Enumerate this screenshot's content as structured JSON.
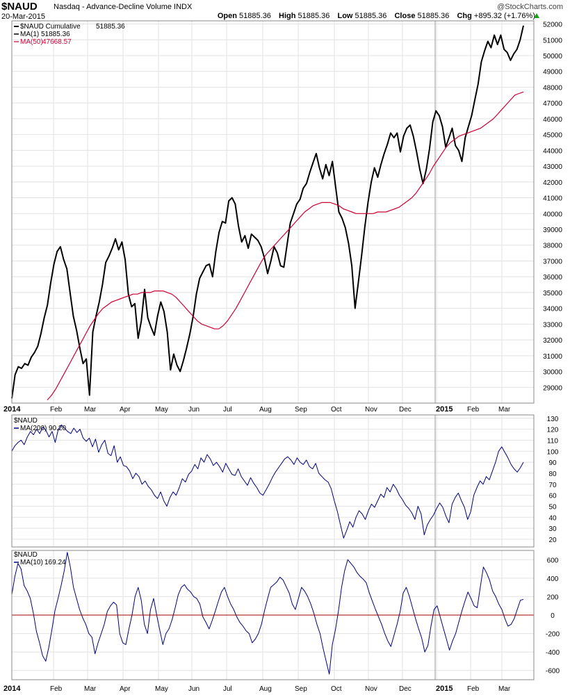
{
  "header": {
    "symbol": "$NAUD",
    "description": "Nasdaq - Advance-Decline Volume INDX",
    "date": "20-Mar-2015",
    "watermark": "@StockCharts.com",
    "open_label": "Open",
    "open": "51885.36",
    "high_label": "High",
    "high": "51885.36",
    "low_label": "Low",
    "low": "51885.36",
    "close_label": "Close",
    "close": "51885.36",
    "chg_label": "Chg",
    "chg": "+895.32 (+1.76%)",
    "chg_direction": "up"
  },
  "colors": {
    "price": "#000000",
    "ma": "#cc0033",
    "indicator": "#000080",
    "grid": "#e2e2e2",
    "zero_line": "#a00000"
  },
  "chart_data": [
    {
      "type": "line",
      "title": "$NAUD Cumulative",
      "x_tick_labels": [
        "2014",
        "Feb",
        "Mar",
        "Apr",
        "May",
        "Jun",
        "Jul",
        "Aug",
        "Sep",
        "Oct",
        "Nov",
        "Dec",
        "2015",
        "Feb",
        "Mar"
      ],
      "ylim": [
        28000,
        52200
      ],
      "y_ticks": [
        29000,
        30000,
        31000,
        32000,
        33000,
        34000,
        35000,
        36000,
        37000,
        38000,
        39000,
        40000,
        41000,
        42000,
        43000,
        44000,
        45000,
        46000,
        47000,
        48000,
        49000,
        50000,
        51000,
        52000
      ],
      "grid": true,
      "legend_position": "top-left",
      "series": [
        {
          "name": "$NAUD Cumulative",
          "value_label": "51885.36",
          "values": [
            28300,
            29800,
            30300,
            30200,
            30500,
            30400,
            30900,
            31200,
            31600,
            32400,
            33400,
            34200,
            35600,
            36800,
            37600,
            37900,
            37100,
            36500,
            35000,
            33500,
            32600,
            31500,
            30500,
            30800,
            28500,
            32500,
            33500,
            34400,
            35500,
            36900,
            37300,
            37800,
            38400,
            37700,
            38200,
            37100,
            34900,
            34100,
            34300,
            32100,
            33200,
            35200,
            33400,
            32800,
            32300,
            33500,
            34400,
            33800,
            32500,
            30100,
            31100,
            30400,
            30000,
            30700,
            31500,
            32400,
            33500,
            34900,
            35900,
            36300,
            36700,
            36800,
            36000,
            37600,
            38800,
            39500,
            39400,
            40800,
            41000,
            40600,
            39200,
            38200,
            38600,
            37800,
            38700,
            38500,
            38300,
            37900,
            37200,
            36200,
            37000,
            37900,
            37500,
            36700,
            36600,
            38000,
            39400,
            40000,
            40600,
            40900,
            41600,
            41900,
            42600,
            43200,
            43800,
            42900,
            42200,
            43100,
            42400,
            43300,
            41700,
            40100,
            39700,
            39100,
            38100,
            36700,
            34000,
            35600,
            37300,
            39100,
            40700,
            42000,
            42900,
            42300,
            43100,
            43800,
            44400,
            45100,
            44800,
            45100,
            43900,
            44900,
            45400,
            45600,
            44900,
            43900,
            42800,
            41900,
            42800,
            44100,
            45800,
            46500,
            46200,
            45500,
            44200,
            44800,
            45400,
            44300,
            44000,
            43300,
            44800,
            45500,
            46200,
            47200,
            48200,
            49600,
            50300,
            50900,
            50500,
            51300,
            50700,
            51300,
            50400,
            50200,
            49700,
            50100,
            50400,
            51000,
            51900
          ]
        },
        {
          "name": "MA(1)",
          "value_label": "51885.36",
          "values": []
        },
        {
          "name": "MA(50)",
          "value_label": "47668.57",
          "values": [
            28200,
            28500,
            28900,
            29400,
            29900,
            30400,
            30900,
            31400,
            31900,
            32400,
            32900,
            33300,
            33700,
            34000,
            34200,
            34400,
            34500,
            34600,
            34700,
            34800,
            34900,
            34900,
            35000,
            35000,
            35000,
            35100,
            35100,
            35100,
            35000,
            34900,
            34700,
            34400,
            34100,
            33800,
            33500,
            33200,
            33000,
            32900,
            32800,
            32700,
            32700,
            32900,
            33200,
            33600,
            34000,
            34500,
            35000,
            35500,
            36000,
            36500,
            37000,
            37400,
            37700,
            38000,
            38300,
            38600,
            38900,
            39200,
            39500,
            39800,
            40100,
            40300,
            40500,
            40600,
            40700,
            40700,
            40700,
            40600,
            40500,
            40300,
            40200,
            40100,
            40000,
            40000,
            40000,
            40000,
            40000,
            40100,
            40100,
            40100,
            40200,
            40300,
            40400,
            40600,
            40800,
            41000,
            41300,
            41700,
            42100,
            42500,
            43000,
            43400,
            43800,
            44200,
            44500,
            44700,
            44900,
            45000,
            45100,
            45200,
            45300,
            45400,
            45600,
            45800,
            46000,
            46300,
            46600,
            46900,
            47200,
            47500,
            47600,
            47700
          ]
        }
      ]
    },
    {
      "type": "line",
      "title": "$NAUD",
      "ylim": [
        13,
        133
      ],
      "y_ticks": [
        20,
        30,
        40,
        50,
        60,
        70,
        80,
        90,
        100,
        110,
        120,
        130
      ],
      "grid": true,
      "series": [
        {
          "name": "MA(200)",
          "value_label": "90.20",
          "values": [
            100,
            105,
            108,
            110,
            106,
            113,
            118,
            115,
            120,
            116,
            122,
            119,
            113,
            118,
            108,
            120,
            124,
            121,
            118,
            116,
            121,
            117,
            120,
            112,
            109,
            112,
            104,
            111,
            99,
            106,
            110,
            98,
            96,
            105,
            90,
            95,
            87,
            86,
            82,
            75,
            80,
            77,
            70,
            73,
            68,
            65,
            60,
            57,
            63,
            55,
            50,
            58,
            63,
            60,
            67,
            75,
            72,
            79,
            82,
            88,
            84,
            94,
            90,
            97,
            93,
            87,
            90,
            86,
            81,
            89,
            84,
            79,
            78,
            84,
            77,
            73,
            69,
            76,
            71,
            67,
            62,
            60,
            65,
            70,
            76,
            81,
            85,
            89,
            93,
            95,
            92,
            88,
            94,
            90,
            88,
            92,
            86,
            84,
            89,
            80,
            77,
            74,
            72,
            66,
            55,
            45,
            33,
            21,
            28,
            36,
            31,
            40,
            46,
            43,
            38,
            46,
            52,
            49,
            55,
            61,
            58,
            67,
            63,
            70,
            66,
            60,
            56,
            51,
            48,
            44,
            38,
            50,
            43,
            24,
            33,
            38,
            42,
            48,
            53,
            49,
            41,
            35,
            52,
            58,
            62,
            55,
            49,
            38,
            45,
            60,
            67,
            73,
            70,
            77,
            74,
            82,
            90,
            100,
            104,
            99,
            94,
            88,
            84,
            81,
            85,
            90
          ]
        }
      ]
    },
    {
      "type": "line",
      "title": "$NAUD",
      "ylim": [
        -700,
        700
      ],
      "y_ticks": [
        -600,
        -400,
        -200,
        0,
        200,
        400,
        600
      ],
      "grid": true,
      "series": [
        {
          "name": "MA(10)",
          "value_label": "169.24",
          "values": [
            220,
            420,
            560,
            500,
            320,
            260,
            180,
            20,
            -180,
            -300,
            -440,
            -500,
            -350,
            -160,
            50,
            180,
            320,
            480,
            680,
            520,
            300,
            180,
            60,
            -30,
            -100,
            -200,
            -240,
            -420,
            -300,
            -200,
            -100,
            40,
            100,
            140,
            110,
            -200,
            -300,
            -320,
            -150,
            0,
            200,
            300,
            160,
            -100,
            -200,
            60,
            180,
            0,
            -160,
            -320,
            -200,
            -150,
            -50,
            80,
            220,
            300,
            330,
            280,
            250,
            200,
            180,
            120,
            -20,
            -80,
            -150,
            -60,
            40,
            150,
            250,
            300,
            200,
            120,
            60,
            -20,
            -80,
            -120,
            -170,
            -200,
            -300,
            -260,
            -200,
            -100,
            50,
            180,
            300,
            330,
            360,
            410,
            380,
            310,
            240,
            120,
            60,
            180,
            300,
            260,
            200,
            120,
            20,
            -100,
            -200,
            -360,
            -500,
            -640,
            -320,
            -160,
            50,
            300,
            480,
            600,
            560,
            520,
            460,
            420,
            390,
            350,
            240,
            150,
            60,
            -20,
            -100,
            -200,
            -280,
            -340,
            -220,
            -100,
            40,
            240,
            300,
            200,
            80,
            -40,
            -150,
            -250,
            -400,
            -330,
            -120,
            60,
            100,
            -20,
            -140,
            -260,
            -380,
            -280,
            -200,
            -80,
            40,
            150,
            250,
            180,
            100,
            80,
            300,
            520,
            460,
            380,
            260,
            200,
            120,
            60,
            -40,
            -120,
            -100,
            -40,
            60,
            160,
            170
          ]
        }
      ]
    }
  ]
}
